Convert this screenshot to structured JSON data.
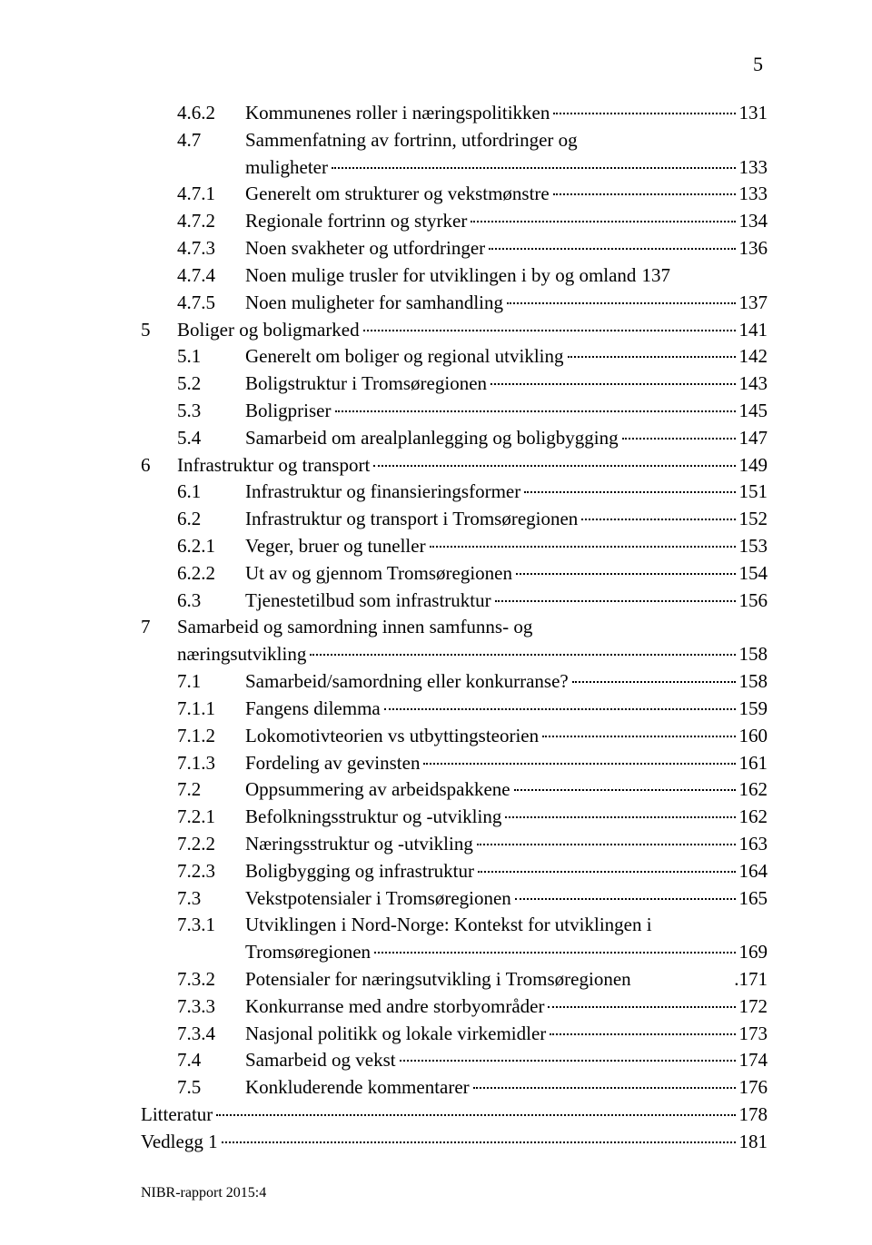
{
  "page_number": "5",
  "footer": "NIBR-rapport 2015:4",
  "toc": [
    {
      "chap": "",
      "num": "4.6.2",
      "label": "Kommunenes roller i næringspolitikken",
      "page": "131"
    },
    {
      "chap": "",
      "num": "4.7",
      "label": "Sammenfatning av fortrinn, utfordringer og",
      "page": "",
      "noleader": true
    },
    {
      "chap": "",
      "num": "",
      "label": "muligheter",
      "page": "133"
    },
    {
      "chap": "",
      "num": "4.7.1",
      "label": "Generelt om strukturer og vekstmønstre",
      "page": "133"
    },
    {
      "chap": "",
      "num": "4.7.2",
      "label": "Regionale fortrinn og styrker",
      "page": "134"
    },
    {
      "chap": "",
      "num": "4.7.3",
      "label": "Noen svakheter og utfordringer",
      "page": "136"
    },
    {
      "chap": "",
      "num": "4.7.4",
      "label": "Noen mulige trusler for utviklingen i by og omland",
      "page": "137",
      "noleader": true
    },
    {
      "chap": "",
      "num": "4.7.5",
      "label": "Noen muligheter for samhandling",
      "page": "137"
    },
    {
      "chap": "5",
      "num": "",
      "label": "Boliger og boligmarked",
      "page": "141",
      "chapnum": true
    },
    {
      "chap": "",
      "num": "5.1",
      "label": "Generelt om boliger og regional utvikling",
      "page": "142"
    },
    {
      "chap": "",
      "num": "5.2",
      "label": "Boligstruktur i Tromsøregionen",
      "page": "143"
    },
    {
      "chap": "",
      "num": "5.3",
      "label": "Boligpriser",
      "page": "145"
    },
    {
      "chap": "",
      "num": "5.4",
      "label": "Samarbeid om arealplanlegging og boligbygging",
      "page": "147"
    },
    {
      "chap": "6",
      "num": "",
      "label": "Infrastruktur og transport",
      "page": "149",
      "chapnum": true
    },
    {
      "chap": "",
      "num": "6.1",
      "label": "Infrastruktur og finansieringsformer",
      "page": "151"
    },
    {
      "chap": "",
      "num": "6.2",
      "label": "Infrastruktur og transport i Tromsøregionen",
      "page": "152"
    },
    {
      "chap": "",
      "num": "6.2.1",
      "label": "Veger, bruer og tuneller",
      "page": "153"
    },
    {
      "chap": "",
      "num": "6.2.2",
      "label": "Ut av og gjennom Tromsøregionen",
      "page": "154"
    },
    {
      "chap": "",
      "num": "6.3",
      "label": "Tjenestetilbud som infrastruktur",
      "page": "156"
    },
    {
      "chap": "7",
      "num": "",
      "label": "Samarbeid og samordning innen samfunns- og",
      "page": "",
      "chapnum": true,
      "noleader": true
    },
    {
      "chap": "",
      "num": "",
      "label": "næringsutvikling",
      "page": "158",
      "chapcont": true
    },
    {
      "chap": "",
      "num": "7.1",
      "label": "Samarbeid/samordning eller konkurranse?",
      "page": "158"
    },
    {
      "chap": "",
      "num": "7.1.1",
      "label": "Fangens dilemma",
      "page": "159"
    },
    {
      "chap": "",
      "num": "7.1.2",
      "label": "Lokomotivteorien vs utbyttingsteorien",
      "page": "160"
    },
    {
      "chap": "",
      "num": "7.1.3",
      "label": "Fordeling av gevinsten",
      "page": "161"
    },
    {
      "chap": "",
      "num": "7.2",
      "label": "Oppsummering av arbeidspakkene",
      "page": "162"
    },
    {
      "chap": "",
      "num": "7.2.1",
      "label": "Befolkningsstruktur og -utvikling",
      "page": "162"
    },
    {
      "chap": "",
      "num": "7.2.2",
      "label": "Næringsstruktur og -utvikling",
      "page": "163"
    },
    {
      "chap": "",
      "num": "7.2.3",
      "label": "Boligbygging og infrastruktur",
      "page": "164"
    },
    {
      "chap": "",
      "num": "7.3",
      "label": "Vekstpotensialer i Tromsøregionen",
      "page": "165"
    },
    {
      "chap": "",
      "num": "7.3.1",
      "label": "Utviklingen i Nord-Norge: Kontekst for utviklingen i",
      "page": "",
      "noleader": true
    },
    {
      "chap": "",
      "num": "",
      "label": "Tromsøregionen",
      "page": "169"
    },
    {
      "chap": "",
      "num": "7.3.2",
      "label": "Potensialer for næringsutvikling i Tromsøregionen",
      "page": "171",
      "tight": true
    },
    {
      "chap": "",
      "num": "7.3.3",
      "label": "Konkurranse med andre storbyområder",
      "page": "172"
    },
    {
      "chap": "",
      "num": "7.3.4",
      "label": "Nasjonal politikk og lokale virkemidler",
      "page": "173"
    },
    {
      "chap": "",
      "num": "7.4",
      "label": "Samarbeid og vekst",
      "page": "174"
    },
    {
      "chap": "",
      "num": "7.5",
      "label": "Konkluderende kommentarer",
      "page": "176"
    },
    {
      "chap": "",
      "num": "",
      "label": "Litteratur",
      "page": "178",
      "top": true
    },
    {
      "chap": "",
      "num": "",
      "label": "Vedlegg 1",
      "page": "181",
      "top": true
    }
  ]
}
